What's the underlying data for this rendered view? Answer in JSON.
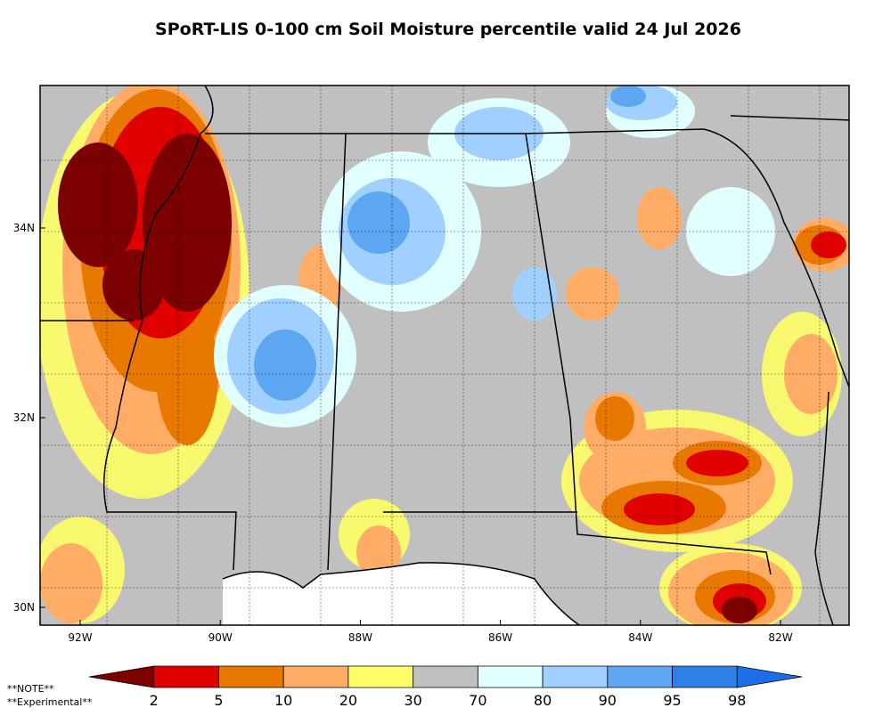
{
  "title": "SPoRT-LIS 0-100 cm Soil Moisture percentile valid 24 Jul 2026",
  "lon_labels": [
    "92W",
    "90W",
    "88W",
    "86W",
    "84W",
    "82W"
  ],
  "lat_labels": [
    "34N",
    "32N",
    "30N"
  ],
  "colorbar": {
    "labels": [
      "2",
      "5",
      "10",
      "20",
      "30",
      "70",
      "80",
      "90",
      "95",
      "98"
    ],
    "colors": [
      "#7d0000",
      "#e00000",
      "#e87800",
      "#ffad66",
      "#ffff66",
      "#c0c0c0",
      "#e2ffff",
      "#9fd0ff",
      "#5ca6f2",
      "#2e80e6",
      "#1c6ee8"
    ]
  },
  "notes": [
    "**NOTE**",
    "**Experimental**"
  ]
}
